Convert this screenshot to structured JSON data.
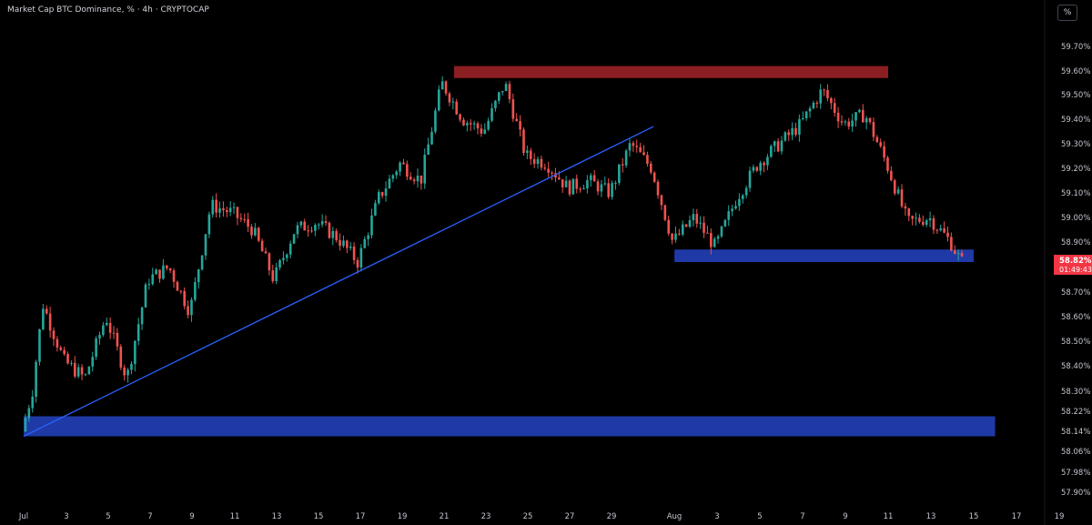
{
  "header": {
    "title": "Market Cap BTC Dominance, % · 4h · CRYPTOCAP",
    "scale_button": "%"
  },
  "colors": {
    "background": "#000000",
    "up": "#26a69a",
    "down": "#ef5350",
    "trendline": "#2962ff",
    "resistance_zone": "#8b1e22",
    "support_zone": "#1f3aa6",
    "price_label": "#f23645"
  },
  "price_label": {
    "value": "58.82%",
    "countdown": "01:49:43",
    "price": 58.82
  },
  "chart_data": {
    "type": "candlestick",
    "title": "Market Cap BTC Dominance, % · 4h · CRYPTOCAP",
    "xlabel": "",
    "ylabel": "",
    "ylim": [
      57.855,
      59.775
    ],
    "y_ticks": [
      "59.70%",
      "59.60%",
      "59.50%",
      "59.40%",
      "59.30%",
      "59.20%",
      "59.10%",
      "59.00%",
      "58.90%",
      "58.70%",
      "58.60%",
      "58.50%",
      "58.40%",
      "58.30%",
      "58.22%",
      "58.14%",
      "58.06%",
      "57.98%",
      "57.90%"
    ],
    "x_ticks": [
      "Jul",
      "3",
      "5",
      "7",
      "9",
      "11",
      "13",
      "15",
      "17",
      "19",
      "21",
      "23",
      "25",
      "27",
      "29",
      "Aug",
      "3",
      "5",
      "7",
      "9",
      "11",
      "13",
      "15",
      "17",
      "19"
    ],
    "x_range": [
      "Jun 30",
      "Aug 20"
    ],
    "grid": false,
    "legend": "none",
    "keypoints": [
      {
        "date": "Jul 1",
        "value": 58.14
      },
      {
        "date": "Jul 1.5",
        "value": 58.3
      },
      {
        "date": "Jul 2",
        "value": 58.65
      },
      {
        "date": "Jul 3",
        "value": 58.42
      },
      {
        "date": "Jul 4",
        "value": 58.35
      },
      {
        "date": "Jul 5",
        "value": 58.6
      },
      {
        "date": "Jul 6",
        "value": 58.35
      },
      {
        "date": "Jul 7",
        "value": 58.75
      },
      {
        "date": "Jul 8",
        "value": 58.8
      },
      {
        "date": "Jul 9",
        "value": 58.62
      },
      {
        "date": "Jul 10",
        "value": 59.05
      },
      {
        "date": "Jul 11",
        "value": 59.02
      },
      {
        "date": "Jul 12",
        "value": 58.95
      },
      {
        "date": "Jul 13",
        "value": 58.75
      },
      {
        "date": "Jul 14",
        "value": 58.95
      },
      {
        "date": "Jul 15",
        "value": 58.98
      },
      {
        "date": "Jul 16",
        "value": 58.92
      },
      {
        "date": "Jul 17",
        "value": 58.82
      },
      {
        "date": "Jul 18",
        "value": 59.08
      },
      {
        "date": "Jul 19",
        "value": 59.22
      },
      {
        "date": "Jul 20",
        "value": 59.15
      },
      {
        "date": "Jul 21",
        "value": 59.55
      },
      {
        "date": "Jul 22",
        "value": 59.4
      },
      {
        "date": "Jul 23",
        "value": 59.35
      },
      {
        "date": "Jul 24",
        "value": 59.55
      },
      {
        "date": "Jul 25",
        "value": 59.25
      },
      {
        "date": "Jul 26",
        "value": 59.22
      },
      {
        "date": "Jul 27",
        "value": 59.12
      },
      {
        "date": "Jul 28",
        "value": 59.15
      },
      {
        "date": "Jul 29",
        "value": 59.1
      },
      {
        "date": "Jul 30",
        "value": 59.3
      },
      {
        "date": "Jul 31",
        "value": 59.2
      },
      {
        "date": "Aug 1",
        "value": 58.9
      },
      {
        "date": "Aug 2",
        "value": 59.0
      },
      {
        "date": "Aug 3",
        "value": 58.88
      },
      {
        "date": "Aug 4",
        "value": 59.08
      },
      {
        "date": "Aug 5",
        "value": 59.22
      },
      {
        "date": "Aug 6",
        "value": 59.3
      },
      {
        "date": "Aug 7",
        "value": 59.38
      },
      {
        "date": "Aug 8",
        "value": 59.52
      },
      {
        "date": "Aug 9",
        "value": 59.38
      },
      {
        "date": "Aug 10",
        "value": 59.42
      },
      {
        "date": "Aug 11",
        "value": 59.22
      },
      {
        "date": "Aug 12",
        "value": 58.98
      },
      {
        "date": "Aug 13",
        "value": 59.0
      },
      {
        "date": "Aug 14",
        "value": 58.9
      },
      {
        "date": "Aug 14.5",
        "value": 58.82
      }
    ],
    "trendline": {
      "from": {
        "date": "Jul 1",
        "value": 58.12
      },
      "to": {
        "date": "Jul 31",
        "value": 59.37
      }
    },
    "zones": [
      {
        "name": "resistance",
        "from_date": "Jul 21.5",
        "to_date": "Aug 11",
        "low": 59.57,
        "high": 59.62
      },
      {
        "name": "support",
        "from_date": "Aug 1",
        "to_date": "Aug 15",
        "low": 58.82,
        "high": 58.87
      },
      {
        "name": "support",
        "from_date": "Jul 1",
        "to_date": "Aug 16",
        "low": 58.12,
        "high": 58.2
      }
    ]
  }
}
